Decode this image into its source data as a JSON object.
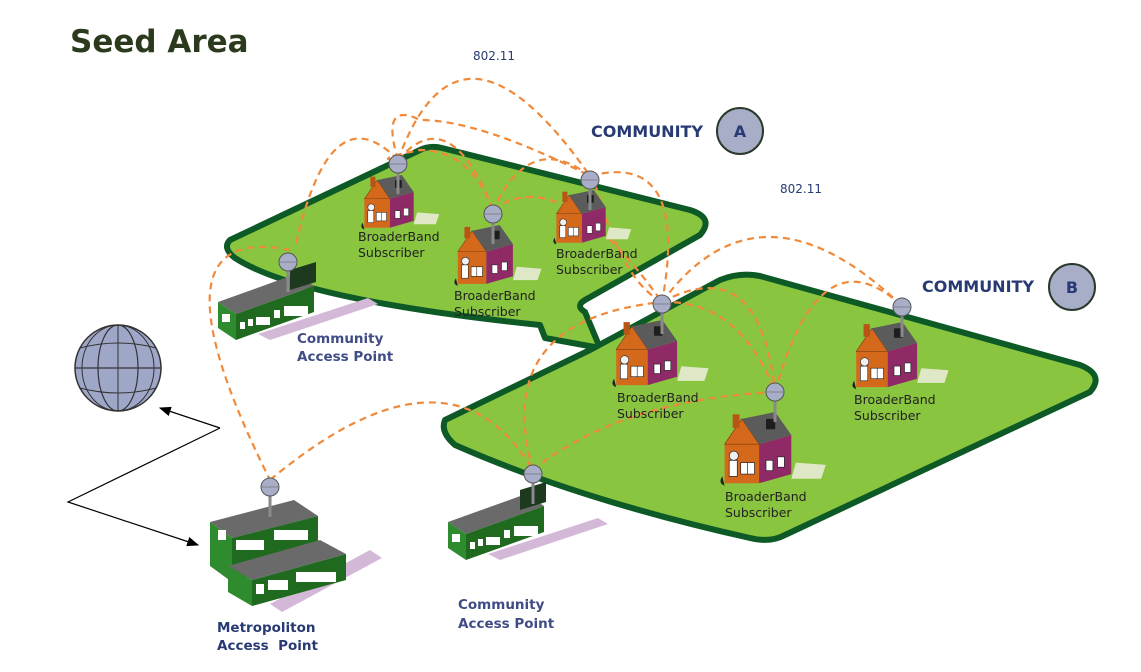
{
  "title": "Seed Area",
  "protocol_labels": [
    "802.11",
    "802.11"
  ],
  "communities": [
    {
      "label": "COMMUNITY",
      "badge": "A"
    },
    {
      "label": "COMMUNITY",
      "badge": "B"
    }
  ],
  "subscriber_label": {
    "line1": "BroaderBand",
    "line2": "Subscriber"
  },
  "community_access_point_label": {
    "line1": "Community",
    "line2": "Access Point"
  },
  "metro_access_point_label": {
    "line1": "Metropoliton",
    "line2": "Access  Point"
  },
  "colors": {
    "land_fill": "#8ac540",
    "land_border": "#0e5a27",
    "link": "#f08a3a",
    "house_wall": "#d4691c",
    "house_side": "#8f2a67",
    "house_roof": "#5b5b5b",
    "building_wall": "#2e8b2e",
    "building_roof": "#6a6a6a",
    "antenna_dish": "#a8adc8",
    "globe": "#9fa7c9",
    "label_blue": "#283a74"
  },
  "icons": [
    "globe-icon",
    "house-icon",
    "antenna-icon",
    "building-icon"
  ]
}
